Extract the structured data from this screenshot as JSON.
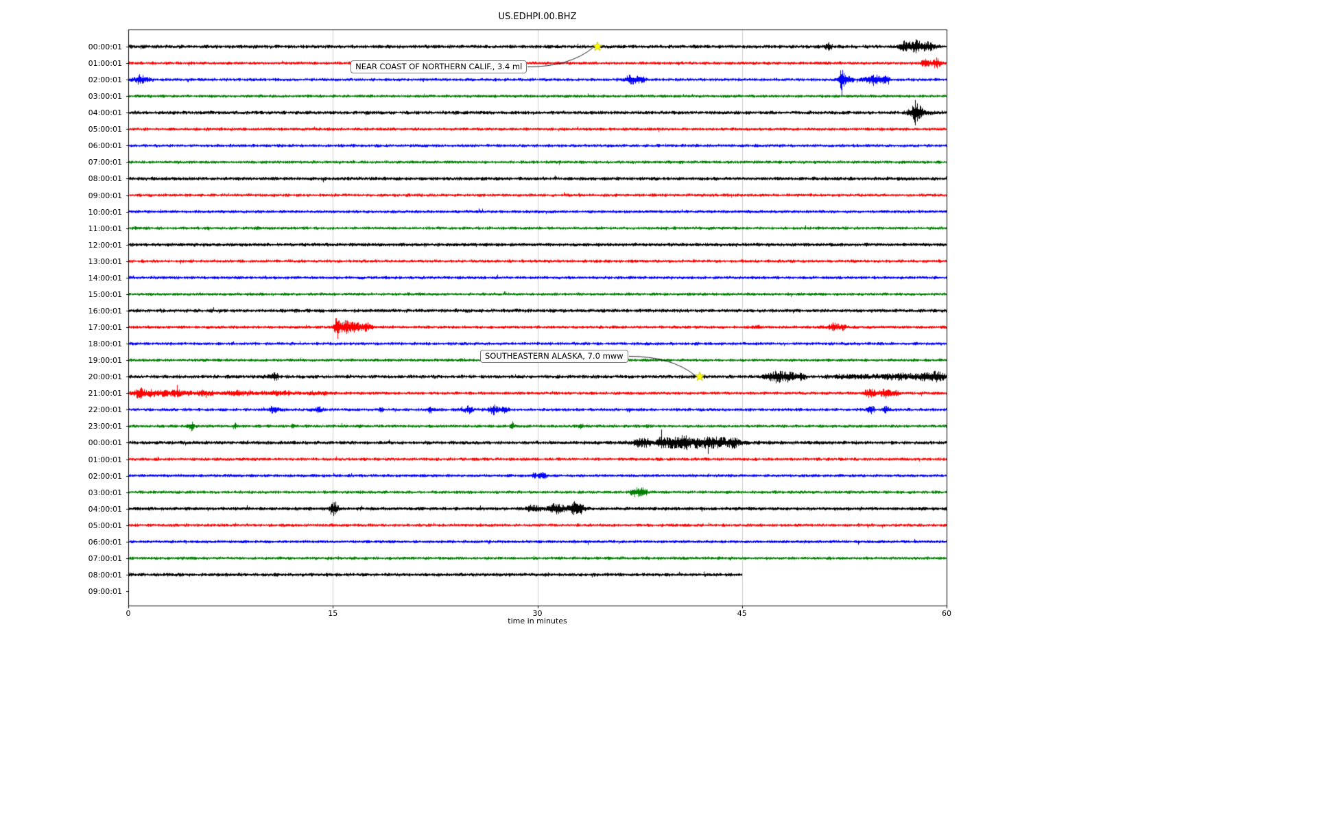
{
  "chart_data": {
    "type": "line",
    "title": "US.EDHPI.00.BHZ",
    "xlabel": "time in minutes",
    "x_range": [
      0,
      60
    ],
    "x_ticks": [
      0,
      15,
      30,
      45,
      60
    ],
    "grid": {
      "vertical_minutes": [
        15,
        30,
        45
      ],
      "color": "#cccccc"
    },
    "trace_colors": [
      "#000000",
      "#ff0000",
      "#0000ff",
      "#008000"
    ],
    "marker_color": "#ffff00",
    "rows": [
      {
        "label": "00:00:01",
        "color_index": 0,
        "has_trace": true,
        "end_min": 60,
        "bursts": [
          [
            51.3,
            0.3,
            1.4
          ],
          [
            57.0,
            0.5,
            2.2
          ],
          [
            57.9,
            0.6,
            2.6
          ],
          [
            58.8,
            0.4,
            1.6
          ]
        ]
      },
      {
        "label": "01:00:01",
        "color_index": 1,
        "has_trace": true,
        "end_min": 60,
        "bursts": [
          [
            58.3,
            0.3,
            1.4
          ],
          [
            59.1,
            0.5,
            2.6
          ]
        ]
      },
      {
        "label": "02:00:01",
        "color_index": 2,
        "has_trace": true,
        "end_min": 60,
        "bursts": [
          [
            0.9,
            0.6,
            2.2
          ],
          [
            36.9,
            0.5,
            2.4
          ],
          [
            37.6,
            0.3,
            1.6
          ],
          [
            52.3,
            0.15,
            9.0
          ],
          [
            52.6,
            0.5,
            2.2
          ],
          [
            54.6,
            0.6,
            2.6
          ],
          [
            55.3,
            0.4,
            2.0
          ]
        ]
      },
      {
        "label": "03:00:01",
        "color_index": 3,
        "has_trace": true,
        "end_min": 60,
        "bursts": []
      },
      {
        "label": "04:00:01",
        "color_index": 0,
        "has_trace": true,
        "end_min": 60,
        "bursts": [
          [
            57.7,
            0.25,
            5.0
          ],
          [
            57.9,
            0.7,
            2.0
          ]
        ]
      },
      {
        "label": "05:00:01",
        "color_index": 1,
        "has_trace": true,
        "end_min": 60,
        "bursts": []
      },
      {
        "label": "06:00:01",
        "color_index": 2,
        "has_trace": true,
        "end_min": 60,
        "bursts": []
      },
      {
        "label": "07:00:01",
        "color_index": 3,
        "has_trace": true,
        "end_min": 60,
        "bursts": []
      },
      {
        "label": "08:00:01",
        "color_index": 0,
        "has_trace": true,
        "end_min": 60,
        "bursts": []
      },
      {
        "label": "09:00:01",
        "color_index": 1,
        "has_trace": true,
        "end_min": 60,
        "bursts": []
      },
      {
        "label": "10:00:01",
        "color_index": 2,
        "has_trace": true,
        "end_min": 60,
        "bursts": []
      },
      {
        "label": "11:00:01",
        "color_index": 3,
        "has_trace": true,
        "end_min": 60,
        "bursts": []
      },
      {
        "label": "12:00:01",
        "color_index": 0,
        "has_trace": true,
        "end_min": 60,
        "bursts": []
      },
      {
        "label": "13:00:01",
        "color_index": 1,
        "has_trace": true,
        "end_min": 60,
        "bursts": []
      },
      {
        "label": "14:00:01",
        "color_index": 2,
        "has_trace": true,
        "end_min": 60,
        "bursts": []
      },
      {
        "label": "15:00:01",
        "color_index": 3,
        "has_trace": true,
        "end_min": 60,
        "bursts": []
      },
      {
        "label": "16:00:01",
        "color_index": 0,
        "has_trace": true,
        "end_min": 60,
        "bursts": []
      },
      {
        "label": "17:00:01",
        "color_index": 1,
        "has_trace": true,
        "end_min": 60,
        "bursts": [
          [
            15.3,
            0.18,
            7.5
          ],
          [
            15.9,
            0.5,
            3.2
          ],
          [
            16.8,
            0.7,
            2.2
          ],
          [
            17.6,
            0.4,
            1.4
          ],
          [
            46.0,
            0.3,
            1.0
          ],
          [
            51.7,
            0.5,
            1.8
          ],
          [
            52.3,
            0.3,
            1.2
          ]
        ]
      },
      {
        "label": "18:00:01",
        "color_index": 2,
        "has_trace": true,
        "end_min": 60,
        "bursts": []
      },
      {
        "label": "19:00:01",
        "color_index": 3,
        "has_trace": true,
        "end_min": 60,
        "bursts": []
      },
      {
        "label": "20:00:01",
        "color_index": 0,
        "has_trace": true,
        "end_min": 60,
        "bursts": [
          [
            10.6,
            0.35,
            1.8
          ],
          [
            47.4,
            0.6,
            2.4
          ],
          [
            48.3,
            0.6,
            2.0
          ],
          [
            49.3,
            0.4,
            1.4
          ],
          [
            53.5,
            2.0,
            0.8
          ],
          [
            56.5,
            1.0,
            1.2
          ],
          [
            58.6,
            1.0,
            1.8
          ],
          [
            59.5,
            0.5,
            1.5
          ]
        ]
      },
      {
        "label": "21:00:01",
        "color_index": 1,
        "has_trace": true,
        "end_min": 60,
        "bursts": [
          [
            0.8,
            0.5,
            2.4
          ],
          [
            2.0,
            0.8,
            1.8
          ],
          [
            3.5,
            0.7,
            1.5
          ],
          [
            5.5,
            1.0,
            1.3
          ],
          [
            8.0,
            1.0,
            1.1
          ],
          [
            11.0,
            1.5,
            0.8
          ],
          [
            14.0,
            1.0,
            0.6
          ],
          [
            54.3,
            0.4,
            2.6
          ],
          [
            55.4,
            0.5,
            2.2
          ],
          [
            56.2,
            0.3,
            1.4
          ]
        ]
      },
      {
        "label": "22:00:01",
        "color_index": 2,
        "has_trace": true,
        "end_min": 60,
        "bursts": [
          [
            10.7,
            0.4,
            2.0
          ],
          [
            13.8,
            0.35,
            1.6
          ],
          [
            18.5,
            0.2,
            0.9
          ],
          [
            22.1,
            0.3,
            1.4
          ],
          [
            24.9,
            0.4,
            1.7
          ],
          [
            26.8,
            0.5,
            2.2
          ],
          [
            27.6,
            0.3,
            1.5
          ],
          [
            36.8,
            0.2,
            0.9
          ],
          [
            54.4,
            0.3,
            1.9
          ],
          [
            55.6,
            0.25,
            1.6
          ]
        ]
      },
      {
        "label": "23:00:01",
        "color_index": 3,
        "has_trace": true,
        "end_min": 60,
        "bursts": [
          [
            4.6,
            0.18,
            3.2
          ],
          [
            7.8,
            0.12,
            1.4
          ],
          [
            12.0,
            0.1,
            0.8
          ],
          [
            17.0,
            0.14,
            1.8
          ],
          [
            28.1,
            0.15,
            2.4
          ],
          [
            33.2,
            0.18,
            1.4
          ],
          [
            38.0,
            0.1,
            0.8
          ]
        ]
      },
      {
        "label": "00:00:01",
        "color_index": 0,
        "has_trace": true,
        "end_min": 60,
        "bursts": [
          [
            37.6,
            0.6,
            2.0
          ],
          [
            39.3,
            0.5,
            2.4
          ],
          [
            40.6,
            0.7,
            2.6
          ],
          [
            41.0,
            4.0,
            0.7
          ],
          [
            42.2,
            0.8,
            2.0
          ],
          [
            43.3,
            0.5,
            2.4
          ],
          [
            44.3,
            0.5,
            2.0
          ]
        ]
      },
      {
        "label": "01:00:01",
        "color_index": 1,
        "has_trace": true,
        "end_min": 60,
        "bursts": []
      },
      {
        "label": "02:00:01",
        "color_index": 2,
        "has_trace": true,
        "end_min": 60,
        "bursts": [
          [
            29.8,
            0.15,
            1.0
          ],
          [
            30.3,
            0.25,
            2.2
          ]
        ]
      },
      {
        "label": "03:00:01",
        "color_index": 3,
        "has_trace": true,
        "end_min": 60,
        "bursts": [
          [
            37.2,
            0.35,
            3.0
          ],
          [
            37.8,
            0.3,
            2.2
          ]
        ]
      },
      {
        "label": "04:00:01",
        "color_index": 0,
        "has_trace": true,
        "end_min": 60,
        "bursts": [
          [
            15.1,
            0.3,
            2.8
          ],
          [
            29.7,
            0.5,
            1.6
          ],
          [
            31.4,
            0.6,
            2.4
          ],
          [
            32.6,
            0.25,
            4.2
          ],
          [
            33.1,
            0.4,
            2.2
          ]
        ]
      },
      {
        "label": "05:00:01",
        "color_index": 1,
        "has_trace": true,
        "end_min": 60,
        "bursts": []
      },
      {
        "label": "06:00:01",
        "color_index": 2,
        "has_trace": true,
        "end_min": 60,
        "bursts": []
      },
      {
        "label": "07:00:01",
        "color_index": 3,
        "has_trace": true,
        "end_min": 60,
        "bursts": []
      },
      {
        "label": "08:00:01",
        "color_index": 0,
        "has_trace": true,
        "end_min": 45,
        "bursts": []
      },
      {
        "label": "09:00:01",
        "color_index": 1,
        "has_trace": false,
        "end_min": 0,
        "bursts": []
      }
    ],
    "events": [
      {
        "label": "NEAR COAST OF NORTHERN CALIF., 3.4 ml",
        "row": 0,
        "minute": 34.4,
        "box_minute": 16.3,
        "box_row": 1.25,
        "marker": "yellow-star"
      },
      {
        "label": "SOUTHEASTERN ALASKA, 7.0 mww",
        "row": 20,
        "minute": 41.9,
        "box_minute": 25.8,
        "box_row": 18.8,
        "marker": "yellow-star"
      }
    ]
  }
}
